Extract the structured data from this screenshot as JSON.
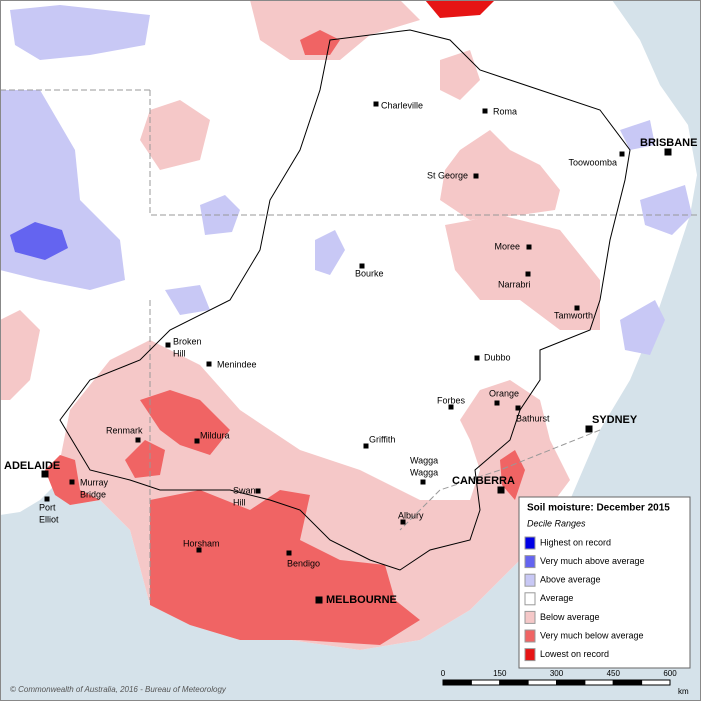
{
  "legend": {
    "title": "Soil moisture: December 2015",
    "subtitle": "Decile Ranges",
    "items": [
      {
        "label": "Highest on record",
        "color": "#0000e6"
      },
      {
        "label": "Very much above average",
        "color": "#6464f0"
      },
      {
        "label": "Above average",
        "color": "#c8c8f5"
      },
      {
        "label": "Average",
        "color": "#ffffff"
      },
      {
        "label": "Below average",
        "color": "#f5c8c8"
      },
      {
        "label": "Very much below average",
        "color": "#f06464"
      },
      {
        "label": "Lowest on record",
        "color": "#e61414"
      }
    ]
  },
  "places": [
    {
      "lines": [
        "Charleville"
      ]
    },
    {
      "lines": [
        "Roma"
      ]
    },
    {
      "lines": [
        "Toowoomba"
      ]
    },
    {
      "lines": [
        "BRISBANE"
      ]
    },
    {
      "lines": [
        "St George"
      ]
    },
    {
      "lines": [
        "Moree"
      ]
    },
    {
      "lines": [
        "Bourke"
      ]
    },
    {
      "lines": [
        "Narrabri"
      ]
    },
    {
      "lines": [
        "Tamworth"
      ]
    },
    {
      "lines": [
        "Broken",
        "Hill"
      ]
    },
    {
      "lines": [
        "Menindee"
      ]
    },
    {
      "lines": [
        "Dubbo"
      ]
    },
    {
      "lines": [
        "Orange"
      ]
    },
    {
      "lines": [
        "Forbes"
      ]
    },
    {
      "lines": [
        "Bathurst"
      ]
    },
    {
      "lines": [
        "SYDNEY"
      ]
    },
    {
      "lines": [
        "Renmark"
      ]
    },
    {
      "lines": [
        "Mildura"
      ]
    },
    {
      "lines": [
        "Griffith"
      ]
    },
    {
      "lines": [
        "Wagga",
        "Wagga"
      ]
    },
    {
      "lines": [
        "CANBERRA"
      ]
    },
    {
      "lines": [
        "ADELAIDE"
      ]
    },
    {
      "lines": [
        "Murray",
        "Bridge"
      ]
    },
    {
      "lines": [
        "Port",
        "Elliot"
      ]
    },
    {
      "lines": [
        "Swan",
        "Hill"
      ]
    },
    {
      "lines": [
        "Albury"
      ]
    },
    {
      "lines": [
        "Horsham"
      ]
    },
    {
      "lines": [
        "Bendigo"
      ]
    },
    {
      "lines": [
        "MELBOURNE"
      ]
    }
  ],
  "scale": {
    "ticks": [
      0,
      150,
      300,
      450,
      600
    ],
    "unit": "km"
  },
  "credit": "© Commonwealth of Australia, 2016 - Bureau of Meteorology"
}
